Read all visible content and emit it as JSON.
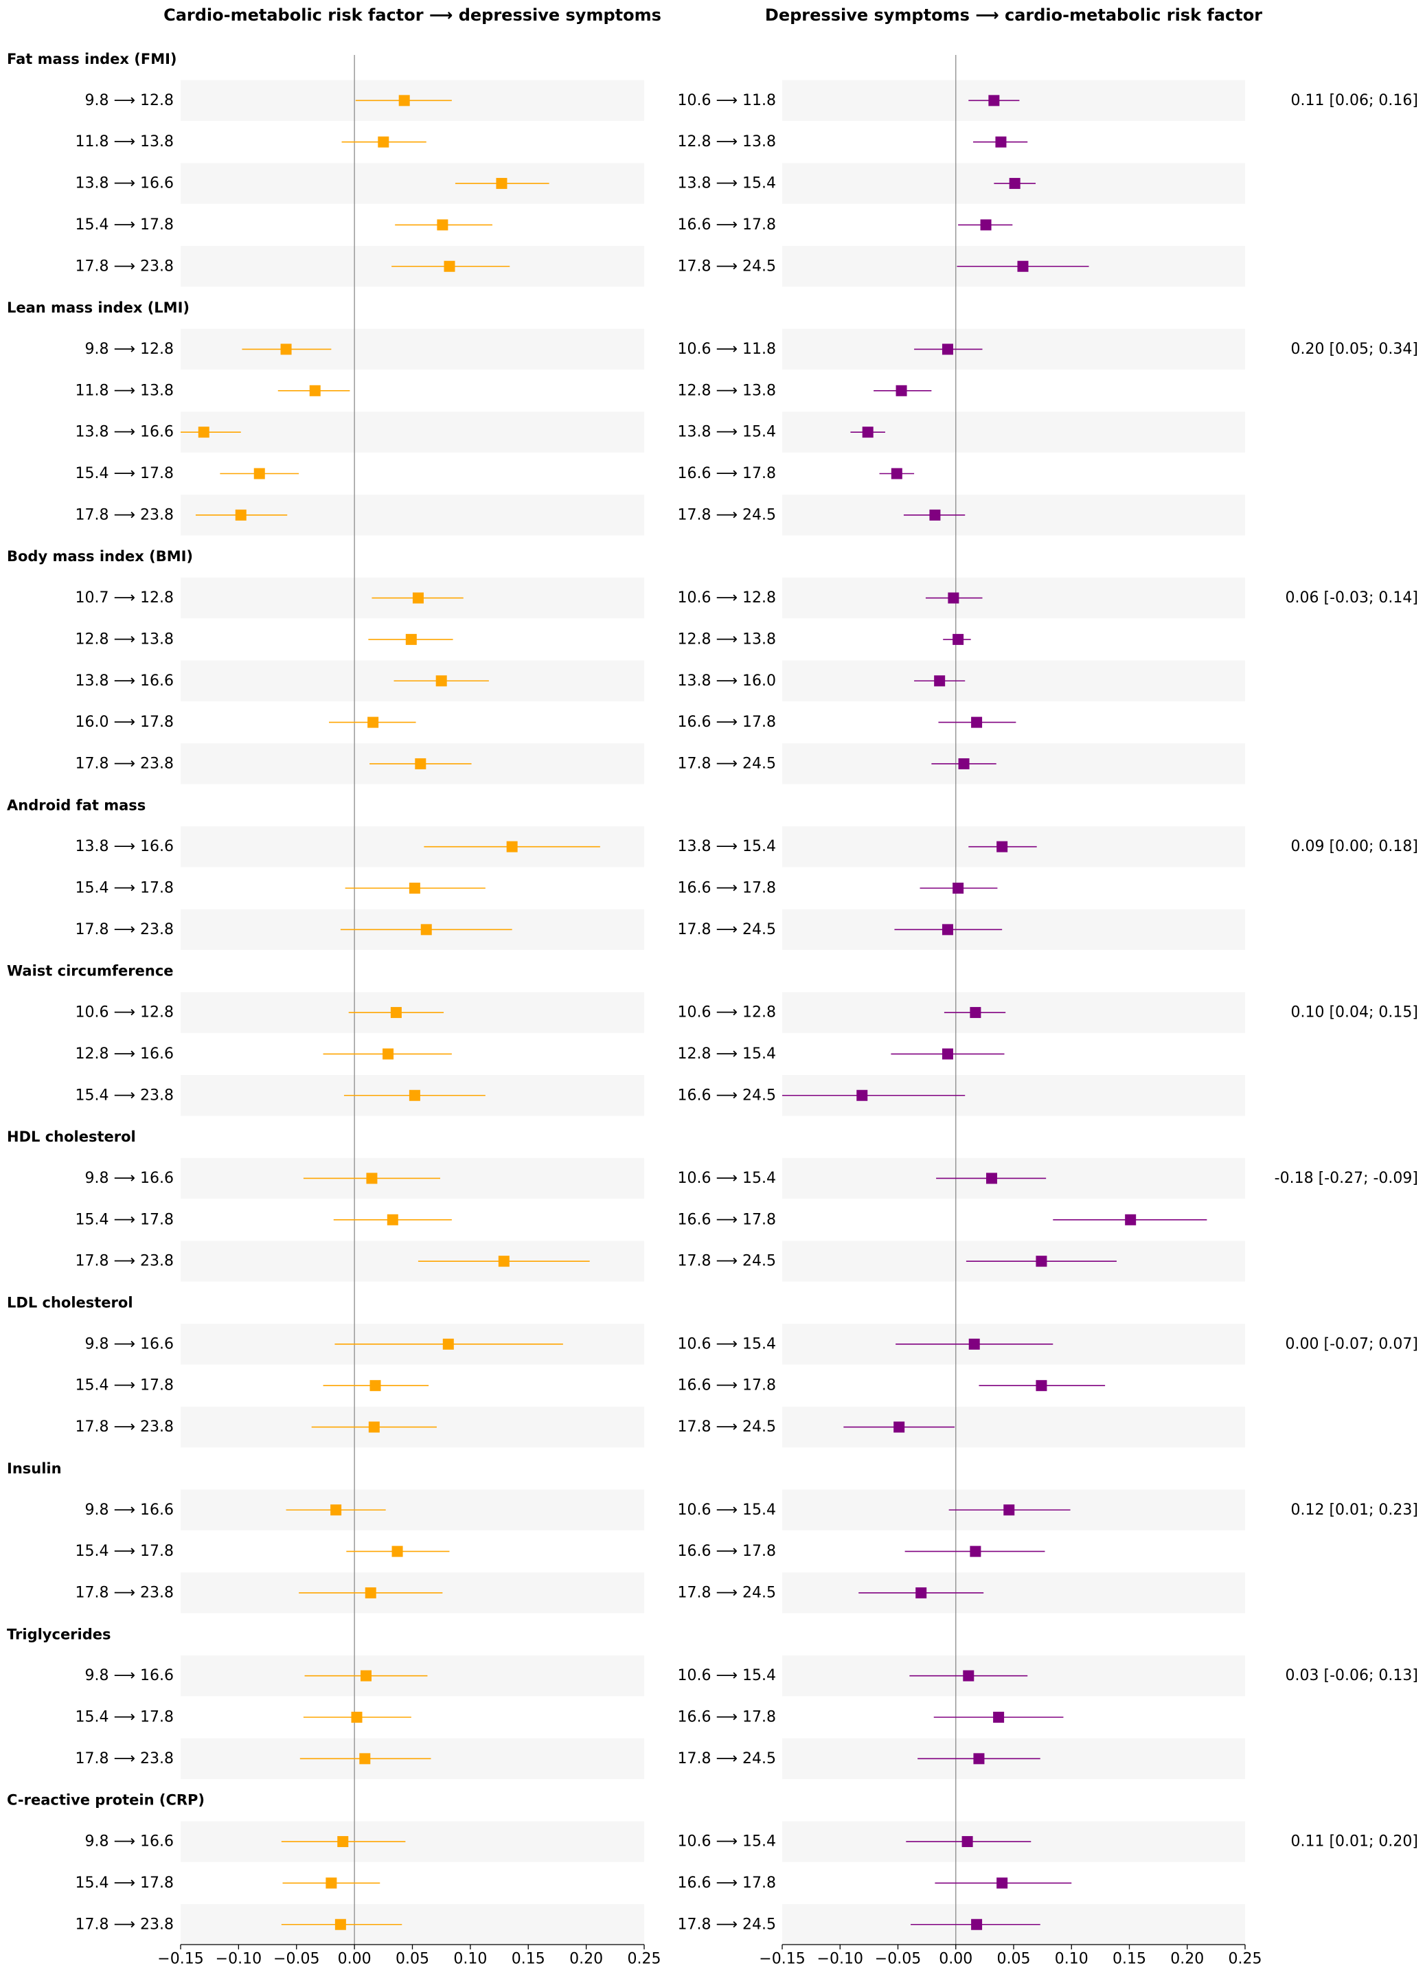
{
  "chart_data": {
    "type": "scatter",
    "xlim": [
      -0.15,
      0.25
    ],
    "xticks": [
      -0.15,
      -0.1,
      -0.05,
      0.0,
      0.05,
      0.1,
      0.15,
      0.2,
      0.25
    ],
    "xtick_labels": [
      "−0.15",
      "−0.10",
      "−0.05",
      "0.00",
      "0.05",
      "0.10",
      "0.15",
      "0.20",
      "0.25"
    ],
    "reference_line": 0,
    "grid": false,
    "band_color": "#f6f6f6",
    "panels": [
      {
        "title": "Cardio-metabolic risk factor ⟶ depressive symptoms",
        "color": "#FFA500"
      },
      {
        "title": "Depressive symptoms ⟶ cardio-metabolic risk factor",
        "color": "#800080"
      }
    ],
    "groups": [
      {
        "name": "Fat mass index (FMI)",
        "annotation": "0.11 [0.06; 0.16]",
        "panels": [
          {
            "rows": [
              {
                "label": "9.8 ⟶ 12.8",
                "estimate": 0.043,
                "ci": [
                  0.001,
                  0.084
                ]
              },
              {
                "label": "11.8 ⟶ 13.8",
                "estimate": 0.025,
                "ci": [
                  -0.011,
                  0.062
                ]
              },
              {
                "label": "13.8 ⟶ 16.6",
                "estimate": 0.127,
                "ci": [
                  0.087,
                  0.168
                ]
              },
              {
                "label": "15.4 ⟶ 17.8",
                "estimate": 0.076,
                "ci": [
                  0.035,
                  0.119
                ]
              },
              {
                "label": "17.8 ⟶ 23.8",
                "estimate": 0.082,
                "ci": [
                  0.032,
                  0.134
                ]
              }
            ]
          },
          {
            "rows": [
              {
                "label": "10.6 ⟶ 11.8",
                "estimate": 0.033,
                "ci": [
                  0.011,
                  0.055
                ]
              },
              {
                "label": "12.8 ⟶ 13.8",
                "estimate": 0.039,
                "ci": [
                  0.015,
                  0.062
                ]
              },
              {
                "label": "13.8 ⟶ 15.4",
                "estimate": 0.051,
                "ci": [
                  0.033,
                  0.069
                ]
              },
              {
                "label": "16.6 ⟶ 17.8",
                "estimate": 0.026,
                "ci": [
                  0.002,
                  0.049
                ]
              },
              {
                "label": "17.8 ⟶ 24.5",
                "estimate": 0.058,
                "ci": [
                  0.001,
                  0.115
                ]
              }
            ]
          }
        ]
      },
      {
        "name": "Lean mass index (LMI)",
        "annotation": "0.20 [0.05; 0.34]",
        "panels": [
          {
            "rows": [
              {
                "label": "9.8 ⟶ 12.8",
                "estimate": -0.059,
                "ci": [
                  -0.097,
                  -0.02
                ]
              },
              {
                "label": "11.8 ⟶ 13.8",
                "estimate": -0.034,
                "ci": [
                  -0.066,
                  -0.004
                ]
              },
              {
                "label": "13.8 ⟶ 16.6",
                "estimate": -0.13,
                "ci": [
                  -0.162,
                  -0.098
                ]
              },
              {
                "label": "15.4 ⟶ 17.8",
                "estimate": -0.082,
                "ci": [
                  -0.116,
                  -0.048
                ]
              },
              {
                "label": "17.8 ⟶ 23.8",
                "estimate": -0.098,
                "ci": [
                  -0.137,
                  -0.058
                ]
              }
            ]
          },
          {
            "rows": [
              {
                "label": "10.6 ⟶ 11.8",
                "estimate": -0.007,
                "ci": [
                  -0.036,
                  0.023
                ]
              },
              {
                "label": "12.8 ⟶ 13.8",
                "estimate": -0.047,
                "ci": [
                  -0.071,
                  -0.021
                ]
              },
              {
                "label": "13.8 ⟶ 15.4",
                "estimate": -0.076,
                "ci": [
                  -0.091,
                  -0.061
                ]
              },
              {
                "label": "16.6 ⟶ 17.8",
                "estimate": -0.051,
                "ci": [
                  -0.066,
                  -0.036
                ]
              },
              {
                "label": "17.8 ⟶ 24.5",
                "estimate": -0.018,
                "ci": [
                  -0.045,
                  0.008
                ]
              }
            ]
          }
        ]
      },
      {
        "name": "Body mass index (BMI)",
        "annotation": "0.06 [-0.03; 0.14]",
        "panels": [
          {
            "rows": [
              {
                "label": "10.7 ⟶ 12.8",
                "estimate": 0.055,
                "ci": [
                  0.015,
                  0.094
                ]
              },
              {
                "label": "12.8 ⟶ 13.8",
                "estimate": 0.049,
                "ci": [
                  0.012,
                  0.085
                ]
              },
              {
                "label": "13.8 ⟶ 16.6",
                "estimate": 0.075,
                "ci": [
                  0.034,
                  0.116
                ]
              },
              {
                "label": "16.0 ⟶ 17.8",
                "estimate": 0.016,
                "ci": [
                  -0.022,
                  0.053
                ]
              },
              {
                "label": "17.8 ⟶ 23.8",
                "estimate": 0.057,
                "ci": [
                  0.013,
                  0.101
                ]
              }
            ]
          },
          {
            "rows": [
              {
                "label": "10.6 ⟶ 12.8",
                "estimate": -0.002,
                "ci": [
                  -0.026,
                  0.023
                ]
              },
              {
                "label": "12.8 ⟶ 13.8",
                "estimate": 0.002,
                "ci": [
                  -0.011,
                  0.013
                ]
              },
              {
                "label": "13.8 ⟶ 16.0",
                "estimate": -0.014,
                "ci": [
                  -0.036,
                  0.008
                ]
              },
              {
                "label": "16.6 ⟶ 17.8",
                "estimate": 0.018,
                "ci": [
                  -0.015,
                  0.052
                ]
              },
              {
                "label": "17.8 ⟶ 24.5",
                "estimate": 0.007,
                "ci": [
                  -0.021,
                  0.035
                ]
              }
            ]
          }
        ]
      },
      {
        "name": "Android fat mass",
        "annotation": "0.09 [0.00; 0.18]",
        "panels": [
          {
            "rows": [
              {
                "label": "13.8 ⟶ 16.6",
                "estimate": 0.136,
                "ci": [
                  0.06,
                  0.212
                ]
              },
              {
                "label": "15.4 ⟶ 17.8",
                "estimate": 0.052,
                "ci": [
                  -0.008,
                  0.113
                ]
              },
              {
                "label": "17.8 ⟶ 23.8",
                "estimate": 0.062,
                "ci": [
                  -0.012,
                  0.136
                ]
              }
            ]
          },
          {
            "rows": [
              {
                "label": "13.8 ⟶ 15.4",
                "estimate": 0.04,
                "ci": [
                  0.011,
                  0.07
                ]
              },
              {
                "label": "16.6 ⟶ 17.8",
                "estimate": 0.002,
                "ci": [
                  -0.031,
                  0.036
                ]
              },
              {
                "label": "17.8 ⟶ 24.5",
                "estimate": -0.007,
                "ci": [
                  -0.053,
                  0.04
                ]
              }
            ]
          }
        ]
      },
      {
        "name": "Waist circumference",
        "annotation": "0.10 [0.04; 0.15]",
        "panels": [
          {
            "rows": [
              {
                "label": "10.6 ⟶ 12.8",
                "estimate": 0.036,
                "ci": [
                  -0.005,
                  0.077
                ]
              },
              {
                "label": "12.8 ⟶ 16.6",
                "estimate": 0.029,
                "ci": [
                  -0.027,
                  0.084
                ]
              },
              {
                "label": "15.4 ⟶ 23.8",
                "estimate": 0.052,
                "ci": [
                  -0.009,
                  0.113
                ]
              }
            ]
          },
          {
            "rows": [
              {
                "label": "10.6 ⟶ 12.8",
                "estimate": 0.017,
                "ci": [
                  -0.01,
                  0.043
                ]
              },
              {
                "label": "12.8 ⟶ 15.4",
                "estimate": -0.007,
                "ci": [
                  -0.056,
                  0.042
                ]
              },
              {
                "label": "16.6 ⟶ 24.5",
                "estimate": -0.081,
                "ci": [
                  -0.17,
                  0.008
                ]
              }
            ]
          }
        ]
      },
      {
        "name": "HDL cholesterol",
        "annotation": "-0.18 [-0.27; -0.09]",
        "panels": [
          {
            "rows": [
              {
                "label": "9.8 ⟶ 16.6",
                "estimate": 0.015,
                "ci": [
                  -0.044,
                  0.074
                ]
              },
              {
                "label": "15.4 ⟶ 17.8",
                "estimate": 0.033,
                "ci": [
                  -0.018,
                  0.084
                ]
              },
              {
                "label": "17.8 ⟶ 23.8",
                "estimate": 0.129,
                "ci": [
                  0.055,
                  0.203
                ]
              }
            ]
          },
          {
            "rows": [
              {
                "label": "10.6 ⟶ 15.4",
                "estimate": 0.031,
                "ci": [
                  -0.017,
                  0.078
                ]
              },
              {
                "label": "16.6 ⟶ 17.8",
                "estimate": 0.151,
                "ci": [
                  0.084,
                  0.217
                ]
              },
              {
                "label": "17.8 ⟶ 24.5",
                "estimate": 0.074,
                "ci": [
                  0.009,
                  0.139
                ]
              }
            ]
          }
        ]
      },
      {
        "name": "LDL cholesterol",
        "annotation": "0.00 [-0.07; 0.07]",
        "panels": [
          {
            "rows": [
              {
                "label": "9.8 ⟶ 16.6",
                "estimate": 0.081,
                "ci": [
                  -0.017,
                  0.18
                ]
              },
              {
                "label": "15.4 ⟶ 17.8",
                "estimate": 0.018,
                "ci": [
                  -0.027,
                  0.064
                ]
              },
              {
                "label": "17.8 ⟶ 23.8",
                "estimate": 0.017,
                "ci": [
                  -0.037,
                  0.071
                ]
              }
            ]
          },
          {
            "rows": [
              {
                "label": "10.6 ⟶ 15.4",
                "estimate": 0.016,
                "ci": [
                  -0.052,
                  0.084
                ]
              },
              {
                "label": "16.6 ⟶ 17.8",
                "estimate": 0.074,
                "ci": [
                  0.02,
                  0.129
                ]
              },
              {
                "label": "17.8 ⟶ 24.5",
                "estimate": -0.049,
                "ci": [
                  -0.097,
                  -0.001
                ]
              }
            ]
          }
        ]
      },
      {
        "name": "Insulin",
        "annotation": "0.12 [0.01; 0.23]",
        "panels": [
          {
            "rows": [
              {
                "label": "9.8 ⟶ 16.6",
                "estimate": -0.016,
                "ci": [
                  -0.059,
                  0.027
                ]
              },
              {
                "label": "15.4 ⟶ 17.8",
                "estimate": 0.037,
                "ci": [
                  -0.007,
                  0.082
                ]
              },
              {
                "label": "17.8 ⟶ 23.8",
                "estimate": 0.014,
                "ci": [
                  -0.048,
                  0.076
                ]
              }
            ]
          },
          {
            "rows": [
              {
                "label": "10.6 ⟶ 15.4",
                "estimate": 0.046,
                "ci": [
                  -0.006,
                  0.099
                ]
              },
              {
                "label": "16.6 ⟶ 17.8",
                "estimate": 0.017,
                "ci": [
                  -0.044,
                  0.077
                ]
              },
              {
                "label": "17.8 ⟶ 24.5",
                "estimate": -0.03,
                "ci": [
                  -0.084,
                  0.024
                ]
              }
            ]
          }
        ]
      },
      {
        "name": "Triglycerides",
        "annotation": "0.03 [-0.06; 0.13]",
        "panels": [
          {
            "rows": [
              {
                "label": "9.8 ⟶ 16.6",
                "estimate": 0.01,
                "ci": [
                  -0.043,
                  0.063
                ]
              },
              {
                "label": "15.4 ⟶ 17.8",
                "estimate": 0.002,
                "ci": [
                  -0.044,
                  0.049
                ]
              },
              {
                "label": "17.8 ⟶ 23.8",
                "estimate": 0.009,
                "ci": [
                  -0.047,
                  0.066
                ]
              }
            ]
          },
          {
            "rows": [
              {
                "label": "10.6 ⟶ 15.4",
                "estimate": 0.011,
                "ci": [
                  -0.04,
                  0.062
                ]
              },
              {
                "label": "16.6 ⟶ 17.8",
                "estimate": 0.037,
                "ci": [
                  -0.019,
                  0.093
                ]
              },
              {
                "label": "17.8 ⟶ 24.5",
                "estimate": 0.02,
                "ci": [
                  -0.033,
                  0.073
                ]
              }
            ]
          }
        ]
      },
      {
        "name": "C-reactive protein (CRP)",
        "annotation": "0.11 [0.01; 0.20]",
        "panels": [
          {
            "rows": [
              {
                "label": "9.8 ⟶ 16.6",
                "estimate": -0.01,
                "ci": [
                  -0.063,
                  0.044
                ]
              },
              {
                "label": "15.4 ⟶ 17.8",
                "estimate": -0.02,
                "ci": [
                  -0.062,
                  0.022
                ]
              },
              {
                "label": "17.8 ⟶ 23.8",
                "estimate": -0.012,
                "ci": [
                  -0.063,
                  0.041
                ]
              }
            ]
          },
          {
            "rows": [
              {
                "label": "10.6 ⟶ 15.4",
                "estimate": 0.01,
                "ci": [
                  -0.043,
                  0.065
                ]
              },
              {
                "label": "16.6 ⟶ 17.8",
                "estimate": 0.04,
                "ci": [
                  -0.018,
                  0.1
                ]
              },
              {
                "label": "17.8 ⟶ 24.5",
                "estimate": 0.018,
                "ci": [
                  -0.039,
                  0.073
                ]
              }
            ]
          }
        ]
      }
    ]
  }
}
